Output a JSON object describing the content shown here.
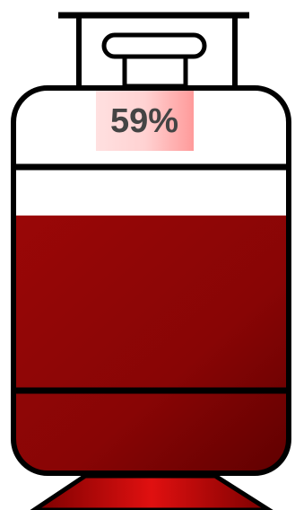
{
  "chart_data": {
    "type": "tank",
    "values": [
      59
    ],
    "value_labels": [
      "59%"
    ],
    "ylim": [
      0,
      100
    ],
    "color": "#8b0000"
  }
}
